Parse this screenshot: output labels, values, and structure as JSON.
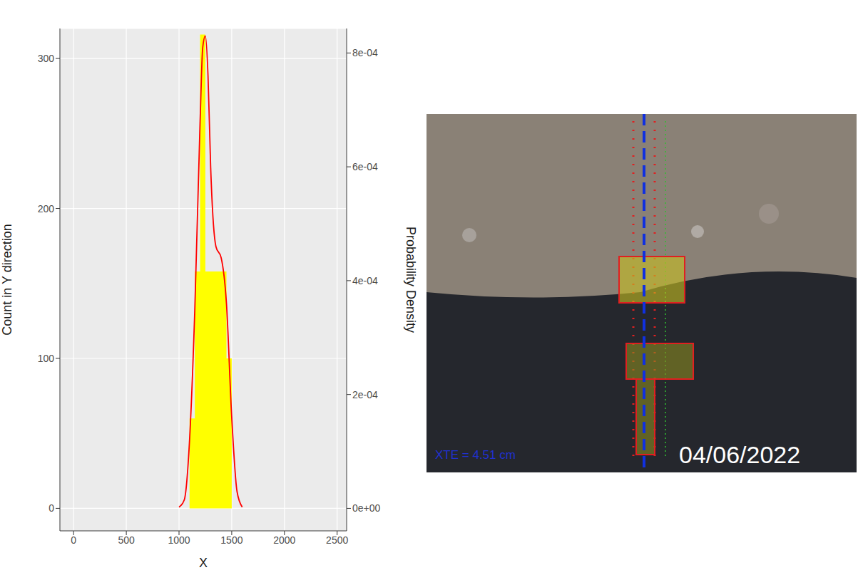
{
  "chart_data": {
    "type": "histogram",
    "xlabel": "X",
    "ylabel": "Count in Y direction",
    "y2label": "Probability Density",
    "bins": [
      1100,
      1150,
      1200,
      1250,
      1300,
      1350,
      1400,
      1450,
      1500
    ],
    "counts": [
      60,
      158,
      316,
      158,
      158,
      158,
      158,
      100
    ],
    "color": "#FFFF00",
    "density": {
      "x": [
        1000,
        1050,
        1100,
        1150,
        1200,
        1225,
        1250,
        1275,
        1300,
        1350,
        1400,
        1450,
        1500,
        1550,
        1600
      ],
      "values": [
        2e-06,
        1.5e-05,
        0.00012,
        0.00035,
        0.00068,
        0.00081,
        0.00083,
        0.00076,
        0.0006,
        0.00046,
        0.00044,
        0.00036,
        0.00016,
        3e-05,
        2e-06
      ],
      "color": "#FF0000",
      "axis": "y2",
      "type": "line"
    },
    "xlim": [
      -130,
      2590
    ],
    "xticks": [
      0,
      500,
      1000,
      1500,
      2000,
      2500
    ],
    "ylim": [
      -15,
      320
    ],
    "yticks": [
      0,
      100,
      200,
      300
    ],
    "y2lim": [
      -3.95e-05,
      0.000843
    ],
    "y2ticks": [
      {
        "value": 0,
        "label": "0e+00"
      },
      {
        "value": 0.0002,
        "label": "2e-04"
      },
      {
        "value": 0.0004,
        "label": "4e-04"
      },
      {
        "value": 0.0006,
        "label": "6e-04"
      },
      {
        "value": 0.0008,
        "label": "8e-04"
      }
    ],
    "grid": true
  },
  "image": {
    "annotations": [
      "XTE = 4.51 cm",
      "04/06/2022"
    ]
  }
}
